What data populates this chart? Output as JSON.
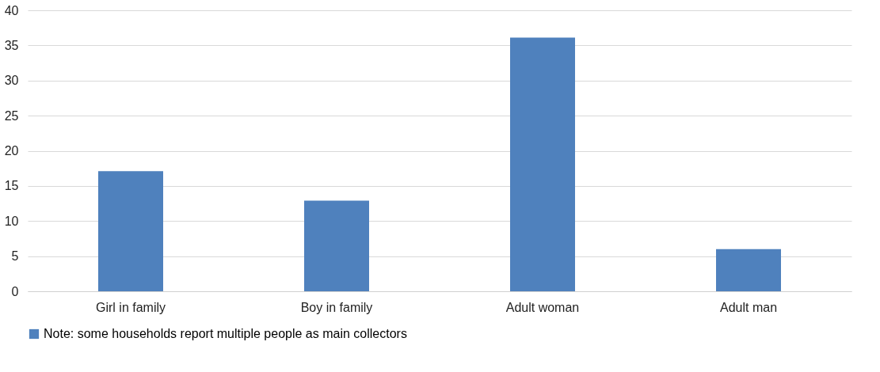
{
  "chart_data": {
    "type": "bar",
    "categories": [
      "Girl in family",
      "Boy in family",
      "Adult woman",
      "Adult man"
    ],
    "series": [
      {
        "name": "Note: some households report multiple people as main collectors",
        "color": "#4f81bd",
        "values": [
          17.1,
          12.9,
          36.1,
          6
        ]
      }
    ],
    "ylim": [
      0,
      40
    ],
    "yticks": [
      0,
      5,
      10,
      15,
      20,
      25,
      30,
      35,
      40
    ],
    "grid": "y",
    "legend": "bottom"
  }
}
